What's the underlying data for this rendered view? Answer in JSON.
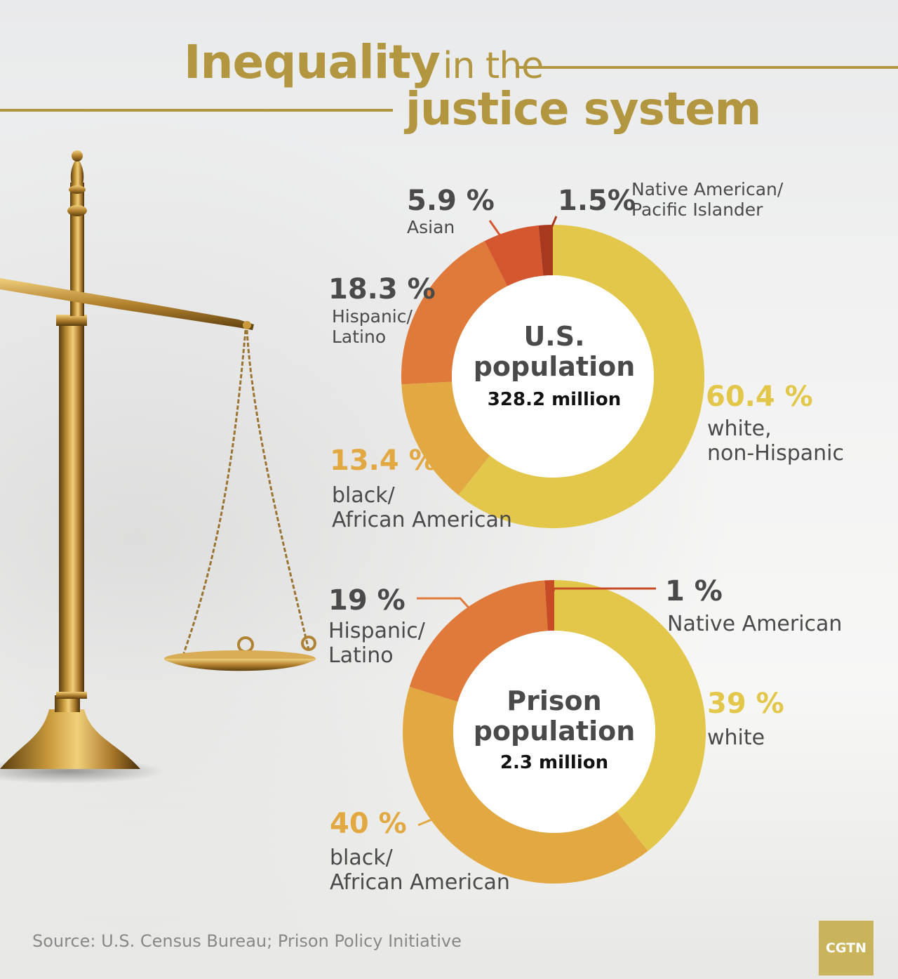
{
  "title": {
    "part1_bold": "Inequality",
    "part1_rest": "in the",
    "part2_bold": "justice system"
  },
  "colors": {
    "gold": "#b39740",
    "white_seg": "#e2c74b",
    "black_seg": "#e2a942",
    "hispanic_seg": "#df7a3a",
    "asian_seg": "#d4572f",
    "native_seg": "#a8391f",
    "text_dark": "#4a4a4a"
  },
  "chart_data": [
    {
      "type": "pie",
      "center_title": "U.S. population",
      "center_subtitle": "328.2 million",
      "categories": [
        "white, non-Hispanic",
        "black/ African American",
        "Hispanic/ Latino",
        "Asian",
        "Native American/ Pacific Islander"
      ],
      "values": [
        60.4,
        13.4,
        18.3,
        5.9,
        1.5
      ],
      "value_labels": [
        "60.4 %",
        "13.4 %",
        "18.3 %",
        "5.9 %",
        "1.5%"
      ]
    },
    {
      "type": "pie",
      "center_title": "Prison population",
      "center_subtitle": "2.3 million",
      "categories": [
        "white",
        "black/ African American",
        "Hispanic/ Latino",
        "Native American"
      ],
      "values": [
        39,
        40,
        19,
        1
      ],
      "value_labels": [
        "39 %",
        "40 %",
        "19 %",
        "1 %"
      ]
    }
  ],
  "donut1": {
    "title_line1": "U.S.",
    "title_line2": "population",
    "subtitle": "328.2 million",
    "white": {
      "pct": "60.4 %",
      "line1": "white,",
      "line2": "non-Hispanic"
    },
    "black": {
      "pct": "13.4 %",
      "line1": "black/",
      "line2": "African American"
    },
    "hispanic": {
      "pct": "18.3 %",
      "line1": "Hispanic/",
      "line2": "Latino"
    },
    "asian": {
      "pct": "5.9 %",
      "line1": "Asian"
    },
    "native": {
      "pct": "1.5%",
      "line1": "Native American/",
      "line2": "Pacific Islander"
    }
  },
  "donut2": {
    "title_line1": "Prison",
    "title_line2": "population",
    "subtitle": "2.3 million",
    "white": {
      "pct": "39 %",
      "line1": "white"
    },
    "black": {
      "pct": "40 %",
      "line1": "black/",
      "line2": "African American"
    },
    "hispanic": {
      "pct": "19 %",
      "line1": "Hispanic/",
      "line2": "Latino"
    },
    "native": {
      "pct": "1 %",
      "line1": "Native American"
    }
  },
  "source": "Source: U.S. Census Bureau; Prison Policy Initiative",
  "logo": "CGTN"
}
